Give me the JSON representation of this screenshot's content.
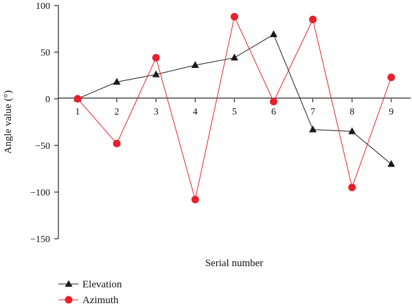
{
  "chart_data": {
    "type": "line",
    "x": [
      1,
      2,
      3,
      4,
      5,
      6,
      7,
      8,
      9
    ],
    "xticks": [
      "1",
      "2",
      "3",
      "4",
      "5",
      "6",
      "7",
      "8",
      "9"
    ],
    "xlabel": "Serial number",
    "ylabel": "Angle value (°)",
    "ylim": [
      -150,
      100
    ],
    "yticks": [
      "100",
      "50",
      "0",
      "−50",
      "−100",
      "−150"
    ],
    "ytick_values": [
      100,
      50,
      0,
      -50,
      -100,
      -150
    ],
    "grid": false,
    "legend_position": "bottom-left",
    "series": [
      {
        "name": "Elevation",
        "marker": "triangle",
        "color": "#1a1a1a",
        "values": [
          0,
          18,
          26,
          36,
          44,
          69,
          -33,
          -35,
          -70
        ]
      },
      {
        "name": "Azimuth",
        "marker": "circle",
        "color": "#e8202a",
        "values": [
          0,
          -48,
          44,
          -108,
          88,
          -3,
          85,
          -95,
          23
        ]
      }
    ]
  }
}
